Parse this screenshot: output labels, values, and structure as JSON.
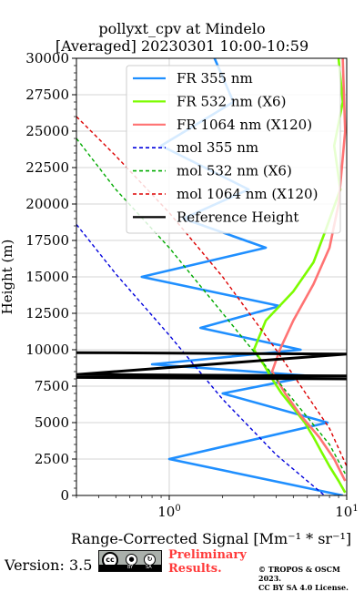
{
  "chart_data": {
    "type": "line",
    "title": [
      "pollyxt_cpv at Mindelo",
      "[Averaged] 20230301 10:00-10:59"
    ],
    "xlabel": "Range-Corrected Signal [Mm⁻¹ * sr⁻¹]",
    "ylabel": "Height (m)",
    "xscale": "log",
    "xlim": [
      0.3,
      10
    ],
    "ylim": [
      0,
      30000
    ],
    "x_tick_labels": [
      {
        "value": 1,
        "label": "10",
        "exp": "0"
      },
      {
        "value": 10,
        "label": "10",
        "exp": "1"
      }
    ],
    "y_ticks": [
      0,
      2500,
      5000,
      7500,
      10000,
      12500,
      15000,
      17500,
      20000,
      22500,
      25000,
      27500,
      30000
    ],
    "grid": true,
    "legend_position": "upper right",
    "series": [
      {
        "name": "FR 355 nm",
        "color": "#1f8fff",
        "style": "solid",
        "x": [
          1.8,
          2.3,
          0.9,
          2.8,
          1.2,
          3.5,
          0.7,
          4.2,
          1.5,
          5.5,
          0.8,
          6.3,
          2.0,
          7.8,
          1.0,
          9.5
        ],
        "y": [
          30000,
          27000,
          24000,
          21000,
          19000,
          17000,
          15000,
          13000,
          11500,
          10000,
          9000,
          8200,
          7000,
          5000,
          2500,
          0
        ]
      },
      {
        "name": "FR 532 nm (X6)",
        "color": "#7cfc00",
        "style": "solid",
        "x": [
          9.0,
          9.5,
          8.5,
          9.2,
          7.5,
          6.5,
          5.0,
          3.5,
          3.0,
          3.4,
          3.8,
          4.3,
          5.0,
          5.8,
          6.5,
          7.2,
          8.0,
          9.0,
          9.8
        ],
        "y": [
          30000,
          27000,
          24000,
          21000,
          18000,
          16000,
          14000,
          12000,
          10000,
          9000,
          8000,
          7000,
          6000,
          5000,
          4000,
          3000,
          2000,
          1000,
          200
        ]
      },
      {
        "name": "FR 1064 nm (X120)",
        "color": "#ff7373",
        "style": "solid",
        "x": [
          9.5,
          9.8,
          9.0,
          8.0,
          6.5,
          5.0,
          4.2,
          3.8,
          4.5,
          5.5,
          7.0,
          8.5,
          9.8
        ],
        "y": [
          30000,
          25000,
          20000,
          17000,
          14500,
          12000,
          10000,
          8500,
          7000,
          5500,
          4000,
          2500,
          1000
        ]
      },
      {
        "name": "mol 355 nm",
        "color": "#0000dd",
        "style": "dashed",
        "x": [
          0.3,
          0.5,
          1.0,
          2.0,
          4.0,
          7.5
        ],
        "y": [
          18600,
          15200,
          11000,
          6600,
          2800,
          0
        ]
      },
      {
        "name": "mol 532 nm (X6)",
        "color": "#00aa00",
        "style": "dashed",
        "x": [
          0.3,
          0.5,
          1.0,
          2.0,
          4.0,
          8.0,
          9.8
        ],
        "y": [
          24500,
          21000,
          17000,
          12500,
          8000,
          3500,
          1500
        ]
      },
      {
        "name": "mol 1064 nm (X120)",
        "color": "#dd0000",
        "style": "dashed",
        "x": [
          0.3,
          0.5,
          1.0,
          2.0,
          4.0,
          8.0,
          10.0
        ],
        "y": [
          26000,
          23300,
          19400,
          15000,
          10000,
          4600,
          2000
        ]
      },
      {
        "name": "Reference Height",
        "color": "#000000",
        "style": "solid",
        "x": [
          0.3,
          10,
          0.3,
          10,
          0.3,
          10
        ],
        "y": [
          9800,
          9700,
          8300,
          8200,
          8100,
          8000
        ]
      }
    ]
  },
  "footer": {
    "version": "Version: 3.5",
    "license_badge": {
      "cc": "cc",
      "by": "BY",
      "sa": "SA"
    },
    "preliminary": [
      "Preliminary",
      "Results."
    ],
    "copyright": [
      "© TROPOS & OSCM 2023.",
      "CC BY SA 4.0 License."
    ]
  }
}
